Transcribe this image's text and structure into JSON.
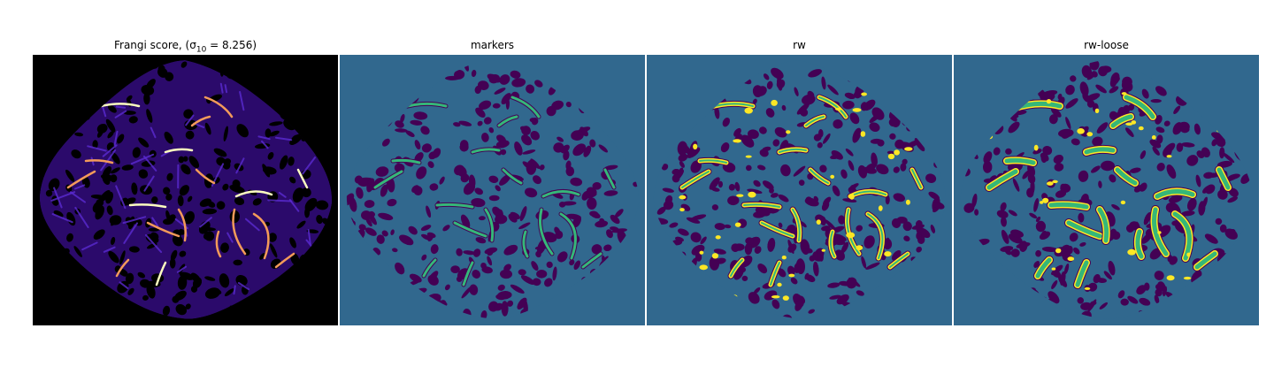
{
  "figure": {
    "panels": [
      {
        "id": "frangi",
        "title": "Frangi score, (σ",
        "title_sub": "10",
        "title_tail": " = 8.256)",
        "background": "#000000",
        "colormap": "magma"
      },
      {
        "id": "markers",
        "title": "markers",
        "title_sub": "",
        "title_tail": "",
        "background": "#31688e",
        "colormap": "viridis"
      },
      {
        "id": "rw",
        "title": "rw",
        "title_sub": "",
        "title_tail": "",
        "background": "#31688e",
        "colormap": "viridis"
      },
      {
        "id": "rw-loose",
        "title": "rw-loose",
        "title_sub": "",
        "title_tail": "",
        "background": "#31688e",
        "colormap": "viridis"
      }
    ],
    "colors": {
      "dark_region": "#440154",
      "background_label": "#31688e",
      "marker": "#35b779",
      "segment": "#fde725",
      "frangi_low": "#2b0a6b",
      "frangi_mid": "#5b2bd1",
      "frangi_high": "#f39a5a",
      "frangi_peak": "#fcfdbf"
    }
  }
}
